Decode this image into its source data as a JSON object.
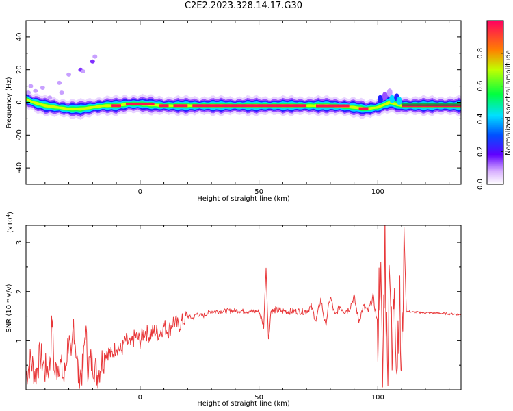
{
  "title": "C2E2.2023.328.14.17.G30",
  "chart_data": [
    {
      "type": "heatmap",
      "xlabel": "Height of straight line (km)",
      "ylabel": "Frequency (Hz)",
      "xlim": [
        -48,
        135
      ],
      "ylim": [
        -50,
        50
      ],
      "xticks": [
        "0",
        "50",
        "100"
      ],
      "xtick_values": [
        0,
        50,
        100
      ],
      "yticks": [
        "40",
        "20",
        "0",
        "-20",
        "-40"
      ],
      "ytick_values": [
        40,
        20,
        0,
        -20,
        -40
      ],
      "colorbar": {
        "label": "Normalized spectral amplitude",
        "range": [
          0.0,
          1.0
        ],
        "ticks": [
          "0.0",
          "0.2",
          "0.4",
          "0.6",
          "0.8"
        ],
        "tick_values": [
          0.0,
          0.2,
          0.4,
          0.6,
          0.8
        ],
        "colors": [
          "#ffffff",
          "#b070ff",
          "#3000ff",
          "#00e0ff",
          "#00ff40",
          "#c0ff00",
          "#ff8000",
          "#ff0050"
        ]
      },
      "ridge_frequency": [
        [
          -48,
          2
        ],
        [
          -45,
          0
        ],
        [
          -40,
          -2
        ],
        [
          -35,
          -3
        ],
        [
          -30,
          -4
        ],
        [
          -25,
          -4
        ],
        [
          -20,
          -3
        ],
        [
          -15,
          -2
        ],
        [
          -10,
          -2
        ],
        [
          -5,
          -1
        ],
        [
          0,
          -1
        ],
        [
          10,
          -2
        ],
        [
          30,
          -2
        ],
        [
          60,
          -2
        ],
        [
          80,
          -2
        ],
        [
          90,
          -3
        ],
        [
          95,
          -4
        ],
        [
          100,
          -3
        ],
        [
          105,
          0
        ],
        [
          110,
          -2
        ],
        [
          135,
          -2
        ]
      ],
      "scattered_blobs": [
        [
          -46,
          10,
          0.3
        ],
        [
          -44,
          7,
          0.4
        ],
        [
          -41,
          9,
          0.3
        ],
        [
          -38,
          3,
          0.3
        ],
        [
          -34,
          12,
          0.3
        ],
        [
          -33,
          6,
          0.3
        ],
        [
          -30,
          17,
          0.3
        ],
        [
          -25,
          20,
          0.5
        ],
        [
          -24,
          19,
          0.4
        ],
        [
          -20,
          25,
          0.5
        ],
        [
          -19,
          28,
          0.3
        ],
        [
          -47,
          6,
          0.4
        ]
      ]
    },
    {
      "type": "line",
      "xlabel": "Height of straight line (km)",
      "ylabel": "SNR (10 * v/v)",
      "multiplier": "(x10^4)",
      "multiplier_base": "(x10",
      "multiplier_exp": "4",
      "xlim": [
        -48,
        135
      ],
      "ylim": [
        0,
        3.35
      ],
      "xticks": [
        "0",
        "50",
        "100"
      ],
      "xtick_values": [
        0,
        50,
        100
      ],
      "yticks": [
        "1",
        "2",
        "3"
      ],
      "ytick_values": [
        1,
        2,
        3
      ],
      "color": "#e8383a",
      "series": [
        {
          "x": [
            -48,
            -46,
            -44,
            -42,
            -40,
            -38,
            -37,
            -36,
            -34,
            -32,
            -30,
            -29,
            -28,
            -26,
            -24,
            -23,
            -22,
            -20,
            -18,
            -16,
            -14,
            -12,
            -10,
            -8,
            -6,
            -4,
            -2,
            0,
            2,
            4,
            6,
            8,
            10,
            12,
            14,
            16,
            18,
            20,
            22,
            24,
            26,
            28,
            30,
            35,
            40,
            45,
            50,
            52,
            53,
            54,
            55,
            57,
            60,
            65,
            70,
            72,
            74,
            76,
            78,
            80,
            82,
            84,
            86,
            88,
            90,
            92,
            94,
            96,
            98,
            100,
            101,
            102,
            103,
            104,
            105,
            106,
            107,
            108,
            109,
            110,
            111,
            112,
            115,
            120,
            125,
            130,
            135
          ],
          "values": [
            0.3,
            0.6,
            0.3,
            0.7,
            0.4,
            0.5,
            1.45,
            0.3,
            0.6,
            0.2,
            1.1,
            0.4,
            1.4,
            0.3,
            0.4,
            1.3,
            0.5,
            0.6,
            0.3,
            0.6,
            0.8,
            0.7,
            0.9,
            0.8,
            1.0,
            0.9,
            1.1,
            1.0,
            1.2,
            1.1,
            1.2,
            1.15,
            1.3,
            1.2,
            1.4,
            1.3,
            1.4,
            1.5,
            1.45,
            1.55,
            1.5,
            1.55,
            1.6,
            1.6,
            1.62,
            1.6,
            1.6,
            1.3,
            2.5,
            1.0,
            1.6,
            1.62,
            1.6,
            1.6,
            1.6,
            1.7,
            1.4,
            1.85,
            1.3,
            1.9,
            1.5,
            1.7,
            1.6,
            1.65,
            1.9,
            1.4,
            1.7,
            1.6,
            1.9,
            1.3,
            2.6,
            0.1,
            3.15,
            0.3,
            3.0,
            0.3,
            2.45,
            0.5,
            2.0,
            0.1,
            3.3,
            1.6,
            1.58,
            1.57,
            1.56,
            1.55,
            1.53
          ]
        }
      ]
    }
  ]
}
